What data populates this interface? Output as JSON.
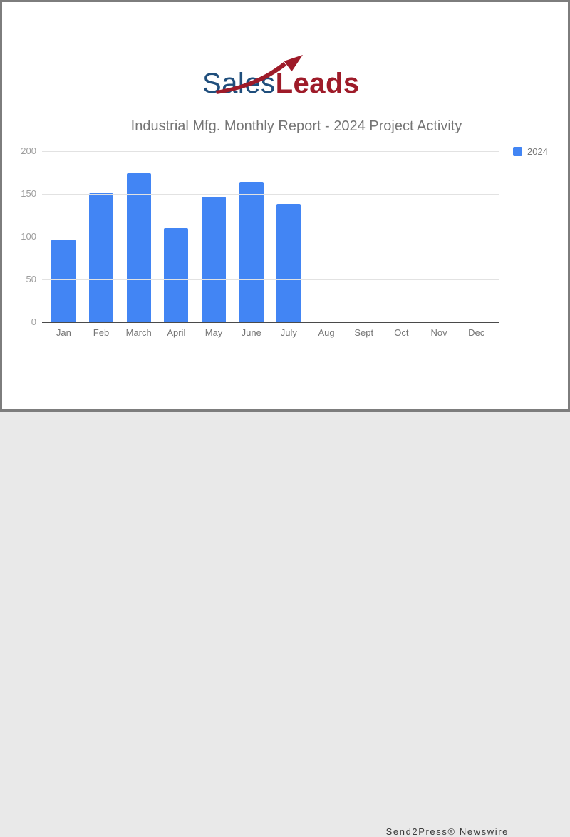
{
  "logo": {
    "part1": "Sales",
    "part2": "Leads",
    "part1_color": "#1f4e7c",
    "part2_color": "#9e1b29",
    "arrow_color": "#9e1b29"
  },
  "chart_data": {
    "type": "bar",
    "title": "Industrial Mfg. Monthly Report - 2024 Project Activity",
    "categories": [
      "Jan",
      "Feb",
      "March",
      "April",
      "May",
      "June",
      "July",
      "Aug",
      "Sept",
      "Oct",
      "Nov",
      "Dec"
    ],
    "series": [
      {
        "name": "2024",
        "values": [
          97,
          151,
          174,
          110,
          147,
          164,
          138,
          0,
          0,
          0,
          0,
          0
        ]
      }
    ],
    "xlabel": "",
    "ylabel": "",
    "ylim": [
      0,
      200
    ],
    "yticks": [
      0,
      50,
      100,
      150,
      200
    ],
    "grid": true,
    "legend_position": "right",
    "bar_color": "#4285f4",
    "title_color": "#757575",
    "ytick_color": "#9e9e9e",
    "xtick_color": "#757575"
  },
  "footer": {
    "credit": "Send2Press® Newswire"
  }
}
